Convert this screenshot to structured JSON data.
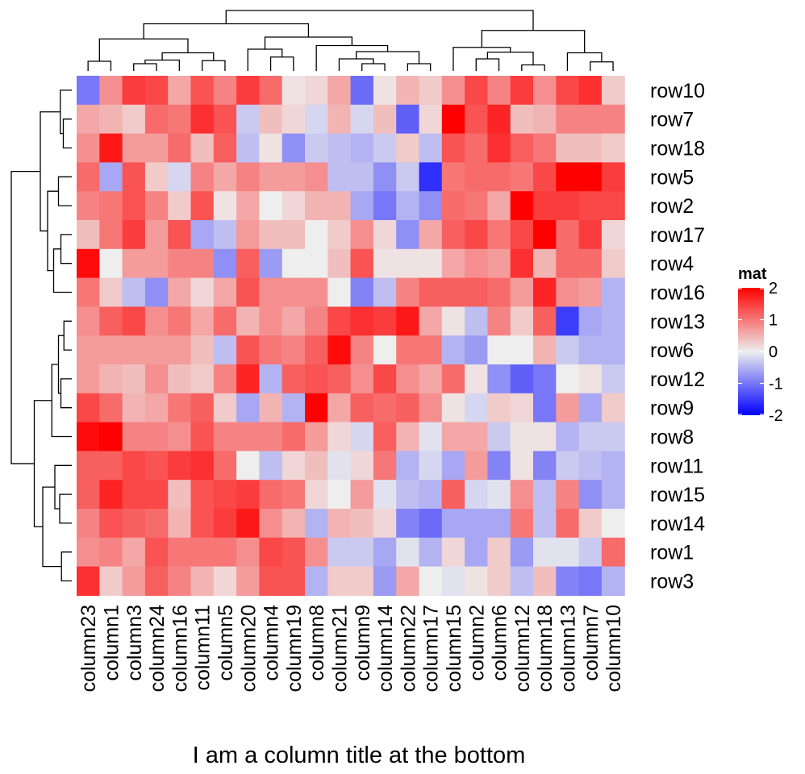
{
  "chart_data": {
    "type": "heatmap",
    "xlabel": "I am a column title at the bottom",
    "columns": [
      "column23",
      "column1",
      "column3",
      "column24",
      "column16",
      "column11",
      "column5",
      "column20",
      "column4",
      "column19",
      "column8",
      "column21",
      "column9",
      "column14",
      "column22",
      "column17",
      "column15",
      "column2",
      "column6",
      "column12",
      "column18",
      "column13",
      "column7",
      "column10"
    ],
    "rows": [
      "row10",
      "row7",
      "row18",
      "row5",
      "row2",
      "row17",
      "row4",
      "row16",
      "row13",
      "row6",
      "row12",
      "row9",
      "row8",
      "row11",
      "row15",
      "row14",
      "row1",
      "row3"
    ],
    "values": [
      [
        -1.0,
        0.8,
        1.5,
        1.4,
        0.6,
        1.3,
        0.9,
        1.5,
        1.1,
        0.1,
        0.2,
        0.6,
        -1.1,
        0.1,
        0.5,
        0.3,
        0.8,
        1.4,
        0.9,
        1.5,
        0.8,
        1.4,
        1.6,
        0.3
      ],
      [
        0.6,
        0.5,
        0.3,
        1.1,
        1.0,
        1.6,
        1.3,
        -0.3,
        0.4,
        0.2,
        -0.2,
        0.5,
        -0.2,
        0.4,
        -1.2,
        0.2,
        2.0,
        1.3,
        1.7,
        0.4,
        0.5,
        0.9,
        0.9,
        0.9
      ],
      [
        0.8,
        1.8,
        0.7,
        0.7,
        1.1,
        0.4,
        1.2,
        -0.4,
        0.1,
        -0.8,
        -0.3,
        -0.4,
        -0.5,
        -0.3,
        0.3,
        -0.4,
        1.3,
        1.1,
        1.6,
        1.2,
        1.0,
        0.4,
        0.4,
        0.3
      ],
      [
        1.1,
        -0.6,
        1.3,
        0.3,
        -0.2,
        0.9,
        0.6,
        0.9,
        0.7,
        0.7,
        0.8,
        -0.4,
        -0.4,
        -0.8,
        -0.3,
        -1.6,
        1.0,
        1.1,
        1.1,
        1.0,
        1.4,
        2.1,
        2.1,
        1.5
      ],
      [
        0.9,
        1.0,
        1.3,
        0.9,
        0.3,
        1.3,
        0.1,
        0.6,
        0.0,
        0.2,
        0.5,
        0.5,
        -0.6,
        -1.0,
        -0.5,
        -0.8,
        1.1,
        1.0,
        0.6,
        2.0,
        1.5,
        1.5,
        1.4,
        1.4
      ],
      [
        0.4,
        1.0,
        1.5,
        0.7,
        1.3,
        -0.6,
        -0.4,
        0.7,
        0.4,
        0.4,
        0.0,
        0.3,
        0.8,
        0.2,
        -0.8,
        0.6,
        1.2,
        1.4,
        1.0,
        1.4,
        2.1,
        1.1,
        1.5,
        0.2
      ],
      [
        1.9,
        0.0,
        0.7,
        0.7,
        0.9,
        0.9,
        -0.8,
        1.2,
        -0.7,
        0.0,
        0.0,
        0.4,
        1.3,
        0.1,
        0.1,
        0.1,
        0.6,
        0.8,
        0.7,
        1.6,
        0.5,
        1.1,
        1.1,
        0.3
      ],
      [
        1.0,
        0.3,
        -0.4,
        -0.8,
        0.6,
        0.2,
        0.6,
        1.3,
        0.8,
        0.8,
        0.8,
        0.0,
        -0.9,
        -0.4,
        0.9,
        1.2,
        1.2,
        1.2,
        1.1,
        0.7,
        1.7,
        0.8,
        0.7,
        -0.5
      ],
      [
        0.8,
        1.2,
        1.4,
        0.8,
        1.0,
        0.6,
        1.1,
        0.5,
        0.8,
        0.6,
        0.9,
        1.4,
        1.6,
        1.5,
        1.8,
        0.6,
        0.1,
        -0.4,
        0.9,
        0.3,
        1.2,
        -1.5,
        -0.6,
        -0.5
      ],
      [
        0.7,
        0.7,
        0.7,
        0.7,
        0.7,
        0.4,
        -0.4,
        1.3,
        1.0,
        0.9,
        1.2,
        1.9,
        0.9,
        0.0,
        1.0,
        1.0,
        -0.5,
        -0.7,
        0.0,
        0.0,
        0.5,
        -0.3,
        -0.5,
        -0.5
      ],
      [
        0.7,
        0.5,
        0.4,
        0.8,
        0.4,
        0.3,
        0.9,
        1.7,
        -0.5,
        1.2,
        1.3,
        1.2,
        0.8,
        1.4,
        0.8,
        0.6,
        1.1,
        0.1,
        -0.8,
        -1.2,
        -1.0,
        0.0,
        0.1,
        -0.3
      ],
      [
        1.4,
        1.1,
        0.5,
        0.6,
        1.0,
        1.2,
        0.3,
        -0.6,
        0.5,
        -0.5,
        2.0,
        0.6,
        1.2,
        1.1,
        1.2,
        0.8,
        0.1,
        -0.2,
        0.3,
        0.2,
        -1.0,
        0.7,
        -0.6,
        0.3
      ],
      [
        1.9,
        2.2,
        0.9,
        0.9,
        0.8,
        1.3,
        0.9,
        0.9,
        0.9,
        1.1,
        0.7,
        0.2,
        -0.2,
        1.2,
        0.5,
        -0.1,
        0.6,
        0.6,
        -0.3,
        0.1,
        0.1,
        -0.5,
        -0.3,
        -0.3
      ],
      [
        1.2,
        1.2,
        1.4,
        1.3,
        1.5,
        1.6,
        1.1,
        0.0,
        -0.4,
        0.2,
        0.4,
        -0.1,
        0.2,
        1.0,
        -0.5,
        -0.2,
        -0.6,
        0.7,
        -0.9,
        0.1,
        -0.9,
        -0.3,
        -0.4,
        -0.5
      ],
      [
        1.2,
        1.7,
        1.4,
        1.4,
        0.4,
        1.3,
        1.4,
        1.5,
        1.1,
        1.0,
        0.2,
        0.0,
        0.7,
        -0.1,
        -0.4,
        -0.5,
        1.2,
        -0.2,
        -0.1,
        0.8,
        -0.4,
        0.9,
        -0.8,
        -0.5
      ],
      [
        0.9,
        1.3,
        1.2,
        1.1,
        0.5,
        1.3,
        1.5,
        1.8,
        0.8,
        0.5,
        -0.5,
        0.5,
        0.4,
        0.2,
        -0.9,
        -1.1,
        -0.6,
        -0.6,
        -0.6,
        1.0,
        -0.4,
        1.1,
        0.3,
        0.0
      ],
      [
        0.8,
        0.9,
        0.6,
        1.3,
        1.0,
        1.0,
        1.0,
        0.8,
        1.4,
        1.3,
        0.8,
        -0.3,
        -0.3,
        -0.6,
        -0.1,
        -0.5,
        0.2,
        -0.6,
        0.3,
        -0.7,
        -0.1,
        -0.1,
        -0.3,
        1.1
      ],
      [
        1.6,
        0.3,
        0.7,
        1.2,
        0.9,
        0.5,
        0.2,
        0.7,
        1.3,
        1.3,
        -0.5,
        0.3,
        0.3,
        -0.7,
        0.6,
        0.0,
        -0.1,
        0.1,
        0.3,
        -0.4,
        0.4,
        -0.9,
        -1.0,
        -0.5
      ]
    ],
    "legend": {
      "title": "mat",
      "ticks": [
        "2",
        "1",
        "0",
        "-1",
        "-2"
      ],
      "colors": {
        "low": "#0000ff",
        "mid": "#eeeeee",
        "high": "#ff0000"
      },
      "range": [
        -2,
        2
      ]
    },
    "column_dendrogram_order": [
      "column23",
      "column1",
      "column3",
      "column24",
      "column16",
      "column11",
      "column5",
      "column20",
      "column4",
      "column19",
      "column8",
      "column21",
      "column9",
      "column14",
      "column22",
      "column17",
      "column15",
      "column2",
      "column6",
      "column12",
      "column18",
      "column13",
      "column7",
      "column10"
    ],
    "row_dendrogram_order": [
      "row10",
      "row7",
      "row18",
      "row5",
      "row2",
      "row17",
      "row4",
      "row16",
      "row13",
      "row6",
      "row12",
      "row9",
      "row8",
      "row11",
      "row15",
      "row14",
      "row1",
      "row3"
    ]
  }
}
